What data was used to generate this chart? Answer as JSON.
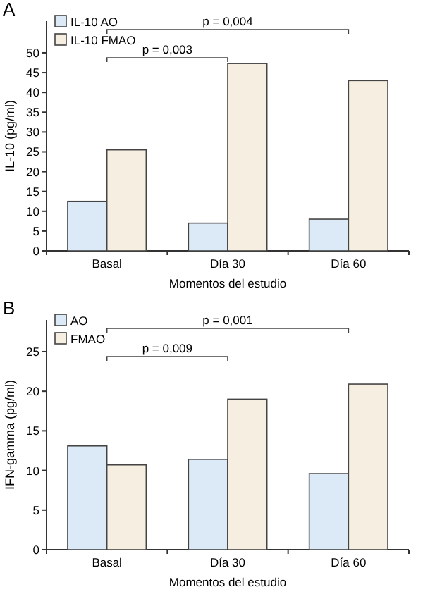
{
  "chart_data": [
    {
      "type": "bar",
      "title": "A",
      "xlabel": "Momentos del estudio",
      "ylabel": "IL-10 (pg/ml)",
      "categories": [
        "Basal",
        "Día 30",
        "Día 60"
      ],
      "series": [
        {
          "name": "IL-10 AO",
          "color": "#dce9f7",
          "values": [
            12.5,
            7,
            8
          ]
        },
        {
          "name": "IL-10 FMAO",
          "color": "#f6eee1",
          "values": [
            25.5,
            47.3,
            43
          ]
        }
      ],
      "ylim": [
        0,
        58
      ],
      "yticks": [
        0,
        5,
        10,
        15,
        20,
        25,
        30,
        35,
        40,
        45,
        50
      ],
      "legend": "top left",
      "annotations": [
        "p = 0,003",
        "p = 0,004"
      ]
    },
    {
      "type": "bar",
      "title": "B",
      "xlabel": "Momentos del estudio",
      "ylabel": "IFN-gamma (pg/ml)",
      "categories": [
        "Basal",
        "Día 30",
        "Día 60"
      ],
      "series": [
        {
          "name": "AO",
          "color": "#dce9f7",
          "values": [
            13.1,
            11.4,
            9.6
          ]
        },
        {
          "name": "FMAO",
          "color": "#f6eee1",
          "values": [
            10.7,
            19,
            20.9
          ]
        }
      ],
      "ylim": [
        0,
        29
      ],
      "yticks": [
        0,
        5,
        10,
        15,
        20,
        25
      ],
      "legend": "top left",
      "annotations": [
        "p = 0,009",
        "p = 0,001"
      ]
    }
  ]
}
